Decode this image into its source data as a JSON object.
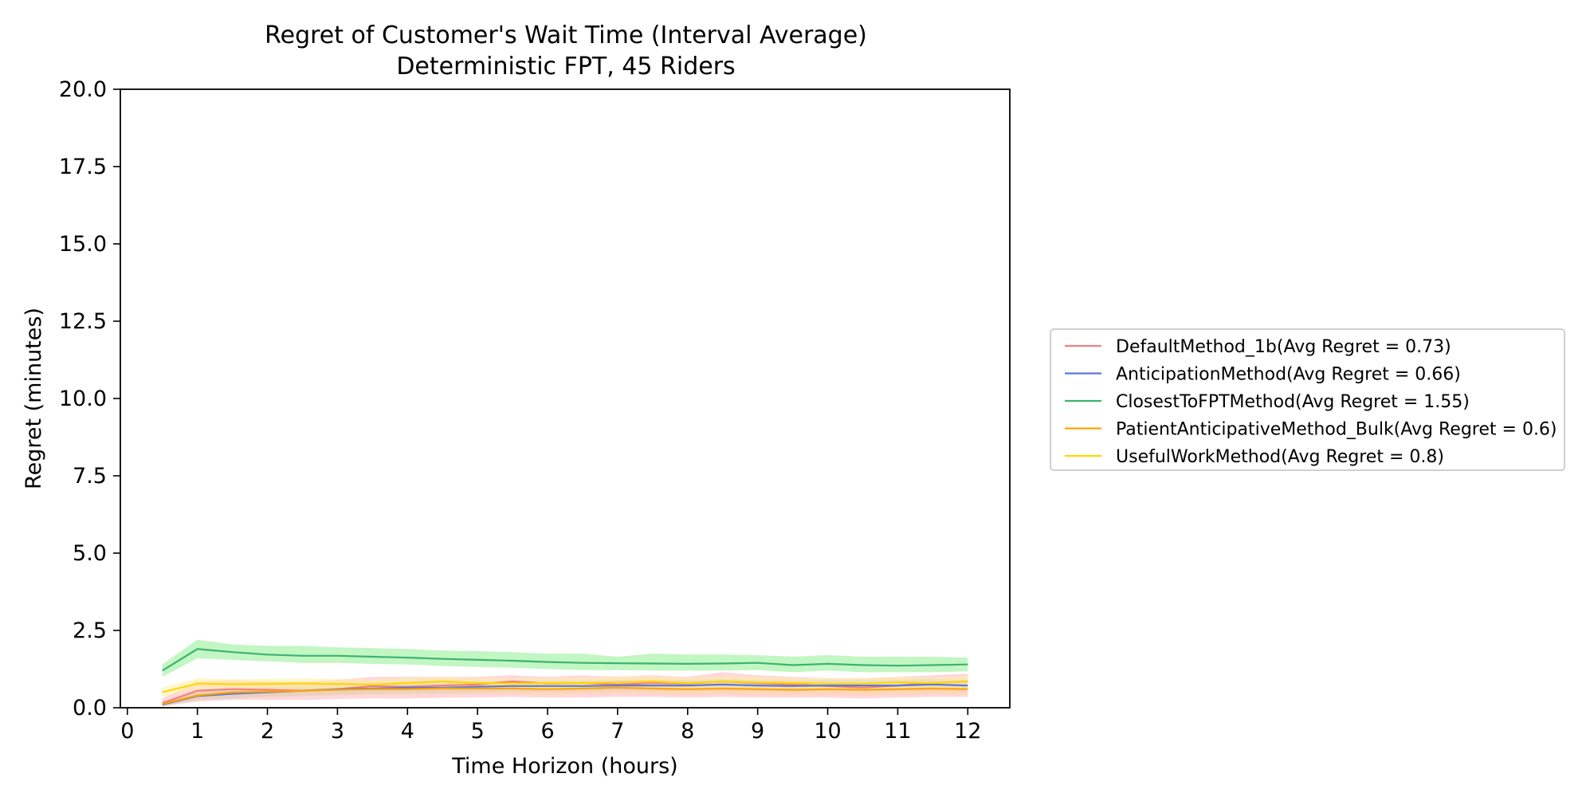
{
  "chart_data": {
    "type": "line",
    "title": "Regret of Customer's Wait Time (Interval Average)",
    "subtitle": "Deterministic FPT, 45 Riders",
    "xlabel": "Time Horizon (hours)",
    "ylabel": "Regret (minutes)",
    "xlim": [
      -0.1,
      12.6
    ],
    "ylim": [
      0,
      20
    ],
    "xticks": [
      0,
      1,
      2,
      3,
      4,
      5,
      6,
      7,
      8,
      9,
      10,
      11,
      12
    ],
    "yticks": [
      "0.0",
      "2.5",
      "5.0",
      "7.5",
      "10.0",
      "12.5",
      "15.0",
      "17.5",
      "20.0"
    ],
    "grid": false,
    "legend_position": "right-outside",
    "x": [
      0.5,
      1,
      1.5,
      2,
      2.5,
      3,
      3.5,
      4,
      4.5,
      5,
      5.5,
      6,
      6.5,
      7,
      7.5,
      8,
      8.5,
      9,
      9.5,
      10,
      10.5,
      11,
      11.5,
      12
    ],
    "series": [
      {
        "name": "DefaultMethod_1b(Avg Regret = 0.73)",
        "color": "#f08080",
        "band_color": "#ffb6c1",
        "values": [
          0.15,
          0.55,
          0.6,
          0.58,
          0.55,
          0.6,
          0.7,
          0.68,
          0.72,
          0.75,
          0.85,
          0.78,
          0.8,
          0.75,
          0.8,
          0.78,
          0.85,
          0.8,
          0.75,
          0.7,
          0.65,
          0.72,
          0.8,
          0.85
        ],
        "lower": [
          0.05,
          0.2,
          0.25,
          0.25,
          0.25,
          0.28,
          0.3,
          0.3,
          0.32,
          0.33,
          0.35,
          0.33,
          0.33,
          0.35,
          0.35,
          0.33,
          0.35,
          0.33,
          0.33,
          0.33,
          0.3,
          0.33,
          0.35,
          0.35
        ],
        "upper": [
          0.3,
          0.85,
          0.9,
          0.85,
          0.85,
          0.9,
          1.0,
          1.0,
          1.0,
          1.0,
          1.05,
          1.0,
          1.05,
          1.0,
          1.05,
          1.0,
          1.15,
          1.05,
          1.0,
          0.95,
          0.95,
          1.0,
          1.05,
          1.1
        ]
      },
      {
        "name": "AnticipationMethod(Avg Regret = 0.66)",
        "color": "#5b78d6",
        "band_color": "#b0c4f0",
        "values": [
          0.1,
          0.38,
          0.45,
          0.5,
          0.55,
          0.6,
          0.62,
          0.65,
          0.65,
          0.68,
          0.7,
          0.7,
          0.7,
          0.72,
          0.72,
          0.72,
          0.75,
          0.72,
          0.7,
          0.72,
          0.72,
          0.72,
          0.75,
          0.72
        ],
        "lower": [
          0.05,
          0.25,
          0.3,
          0.35,
          0.38,
          0.42,
          0.45,
          0.47,
          0.47,
          0.5,
          0.52,
          0.52,
          0.52,
          0.55,
          0.55,
          0.55,
          0.57,
          0.55,
          0.53,
          0.55,
          0.55,
          0.55,
          0.57,
          0.55
        ],
        "upper": [
          0.2,
          0.5,
          0.6,
          0.65,
          0.7,
          0.75,
          0.78,
          0.82,
          0.82,
          0.85,
          0.88,
          0.88,
          0.88,
          0.9,
          0.9,
          0.9,
          0.93,
          0.9,
          0.88,
          0.9,
          0.9,
          0.9,
          0.93,
          0.9
        ]
      },
      {
        "name": "ClosestToFPTMethod(Avg Regret = 1.55)",
        "color": "#3cb371",
        "band_color": "#90ee90",
        "values": [
          1.2,
          1.9,
          1.8,
          1.72,
          1.68,
          1.68,
          1.65,
          1.62,
          1.58,
          1.55,
          1.52,
          1.48,
          1.45,
          1.44,
          1.43,
          1.42,
          1.43,
          1.45,
          1.38,
          1.42,
          1.38,
          1.36,
          1.38,
          1.4
        ],
        "lower": [
          1.0,
          1.6,
          1.55,
          1.5,
          1.45,
          1.45,
          1.42,
          1.4,
          1.35,
          1.32,
          1.3,
          1.25,
          1.22,
          1.22,
          1.2,
          1.2,
          1.2,
          1.22,
          1.15,
          1.2,
          1.15,
          1.15,
          1.15,
          1.18
        ],
        "upper": [
          1.4,
          2.2,
          2.05,
          2.0,
          2.0,
          1.95,
          1.93,
          1.9,
          1.85,
          1.83,
          1.8,
          1.75,
          1.75,
          1.65,
          1.75,
          1.72,
          1.72,
          1.7,
          1.65,
          1.7,
          1.65,
          1.65,
          1.65,
          1.62
        ]
      },
      {
        "name": "PatientAnticipativeMethod_Bulk(Avg Regret = 0.6)",
        "color": "#ffa500",
        "band_color": "#ffd59a",
        "values": [
          0.12,
          0.4,
          0.5,
          0.52,
          0.55,
          0.58,
          0.6,
          0.6,
          0.62,
          0.62,
          0.62,
          0.6,
          0.62,
          0.65,
          0.62,
          0.6,
          0.62,
          0.6,
          0.58,
          0.6,
          0.58,
          0.6,
          0.62,
          0.6
        ],
        "lower": [
          0.05,
          0.25,
          0.32,
          0.35,
          0.38,
          0.4,
          0.42,
          0.42,
          0.43,
          0.43,
          0.43,
          0.42,
          0.43,
          0.45,
          0.43,
          0.42,
          0.43,
          0.42,
          0.4,
          0.42,
          0.4,
          0.42,
          0.43,
          0.42
        ],
        "upper": [
          0.2,
          0.55,
          0.65,
          0.68,
          0.7,
          0.75,
          0.78,
          0.78,
          0.8,
          0.8,
          0.8,
          0.78,
          0.8,
          0.83,
          0.8,
          0.78,
          0.8,
          0.78,
          0.75,
          0.78,
          0.75,
          0.78,
          0.8,
          0.78
        ]
      },
      {
        "name": "UsefulWorkMethod(Avg Regret = 0.8)",
        "color": "#ffd700",
        "band_color": "#fff0a0",
        "values": [
          0.5,
          0.78,
          0.76,
          0.77,
          0.78,
          0.77,
          0.75,
          0.8,
          0.85,
          0.8,
          0.78,
          0.8,
          0.8,
          0.82,
          0.85,
          0.8,
          0.85,
          0.82,
          0.8,
          0.78,
          0.78,
          0.82,
          0.8,
          0.85
        ],
        "lower": [
          0.35,
          0.6,
          0.6,
          0.6,
          0.62,
          0.6,
          0.6,
          0.62,
          0.65,
          0.62,
          0.6,
          0.62,
          0.62,
          0.63,
          0.65,
          0.62,
          0.65,
          0.63,
          0.62,
          0.6,
          0.6,
          0.63,
          0.62,
          0.65
        ],
        "upper": [
          0.65,
          0.95,
          0.92,
          0.93,
          0.95,
          0.93,
          0.92,
          0.97,
          1.0,
          0.97,
          0.95,
          0.97,
          0.97,
          1.0,
          1.02,
          0.97,
          1.02,
          1.0,
          0.97,
          0.95,
          0.95,
          1.0,
          0.97,
          1.02
        ]
      }
    ]
  }
}
